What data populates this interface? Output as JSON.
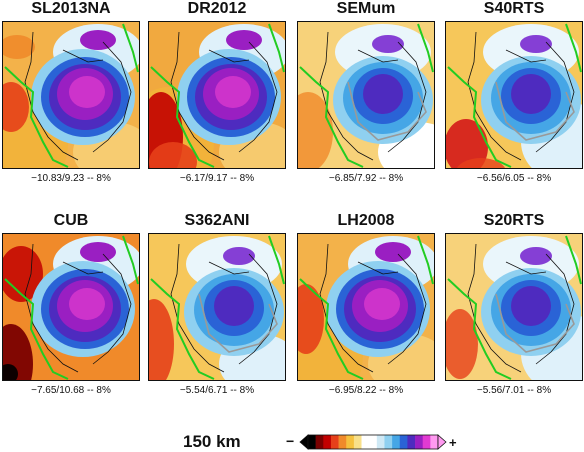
{
  "chart_data": {
    "type": "heatmap",
    "depth_label": "150 km",
    "colorbar": {
      "minus_label": "−",
      "plus_label": "+",
      "colors": [
        "#000000",
        "#7a0000",
        "#c20000",
        "#e6401a",
        "#f08a2a",
        "#f5c13e",
        "#f8e08a",
        "#ffffff",
        "#ffffff",
        "#cfe9f5",
        "#8fd0f0",
        "#45a6e6",
        "#2a63d6",
        "#4e2bbf",
        "#9a1fc2",
        "#e23ad2",
        "#ff9af0"
      ]
    },
    "panels": [
      {
        "model": "SL2013NA",
        "min": -10.83,
        "max": 9.23,
        "scale": "8%",
        "caption": "−10.83/9.23 -- 8%"
      },
      {
        "model": "DR2012",
        "min": -6.17,
        "max": 9.17,
        "scale": "8%",
        "caption": "−6.17/9.17 -- 8%"
      },
      {
        "model": "SEMum",
        "min": -6.85,
        "max": 7.92,
        "scale": "8%",
        "caption": "−6.85/7.92 -- 8%"
      },
      {
        "model": "S40RTS",
        "min": -6.56,
        "max": 6.05,
        "scale": "8%",
        "caption": "−6.56/6.05 -- 8%"
      },
      {
        "model": "CUB",
        "min": -7.65,
        "max": 10.68,
        "scale": "8%",
        "caption": "−7.65/10.68 -- 8%"
      },
      {
        "model": "S362ANI",
        "min": -5.54,
        "max": 6.71,
        "scale": "8%",
        "caption": "−5.54/6.71 -- 8%"
      },
      {
        "model": "LH2008",
        "min": -6.95,
        "max": 8.22,
        "scale": "8%",
        "caption": "−6.95/8.22 -- 8%"
      },
      {
        "model": "S20RTS",
        "min": -5.56,
        "max": 7.01,
        "scale": "8%",
        "caption": "−5.56/7.01 -- 8%"
      }
    ]
  }
}
